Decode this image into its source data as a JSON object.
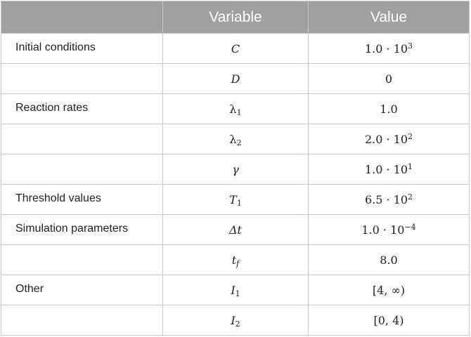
{
  "table": {
    "headers": {
      "category": "",
      "variable": "Variable",
      "value": "Value"
    },
    "rows": [
      {
        "category": "Initial conditions",
        "variable": {
          "base": "C",
          "sub": ""
        },
        "value": {
          "base": "1.0 · 10",
          "sup": "3"
        }
      },
      {
        "category": "",
        "variable": {
          "base": "D",
          "sub": ""
        },
        "value": {
          "base": "0",
          "sup": ""
        }
      },
      {
        "category": "Reaction rates",
        "variable": {
          "base": "λ",
          "sub": "1"
        },
        "value": {
          "base": "1.0",
          "sup": ""
        }
      },
      {
        "category": "",
        "variable": {
          "base": "λ",
          "sub": "2"
        },
        "value": {
          "base": "2.0 · 10",
          "sup": "2"
        }
      },
      {
        "category": "",
        "variable": {
          "base": "γ",
          "sub": ""
        },
        "value": {
          "base": "1.0 · 10",
          "sup": "1"
        }
      },
      {
        "category": "Threshold values",
        "variable": {
          "base": "T",
          "sub": "1"
        },
        "value": {
          "base": "6.5 · 10",
          "sup": "2"
        }
      },
      {
        "category": "Simulation parameters",
        "variable": {
          "base": "Δt",
          "sub": ""
        },
        "value": {
          "base": "1.0 · 10",
          "sup": "−4"
        }
      },
      {
        "category": "",
        "variable": {
          "base": "t",
          "sub": "f"
        },
        "value": {
          "base": "8.0",
          "sup": ""
        }
      },
      {
        "category": "Other",
        "variable": {
          "base": "I",
          "sub": "1"
        },
        "value": {
          "base": "[4, ∞)",
          "sup": ""
        }
      },
      {
        "category": "",
        "variable": {
          "base": "I",
          "sub": "2"
        },
        "value": {
          "base": "[0, 4)",
          "sup": ""
        }
      }
    ]
  }
}
